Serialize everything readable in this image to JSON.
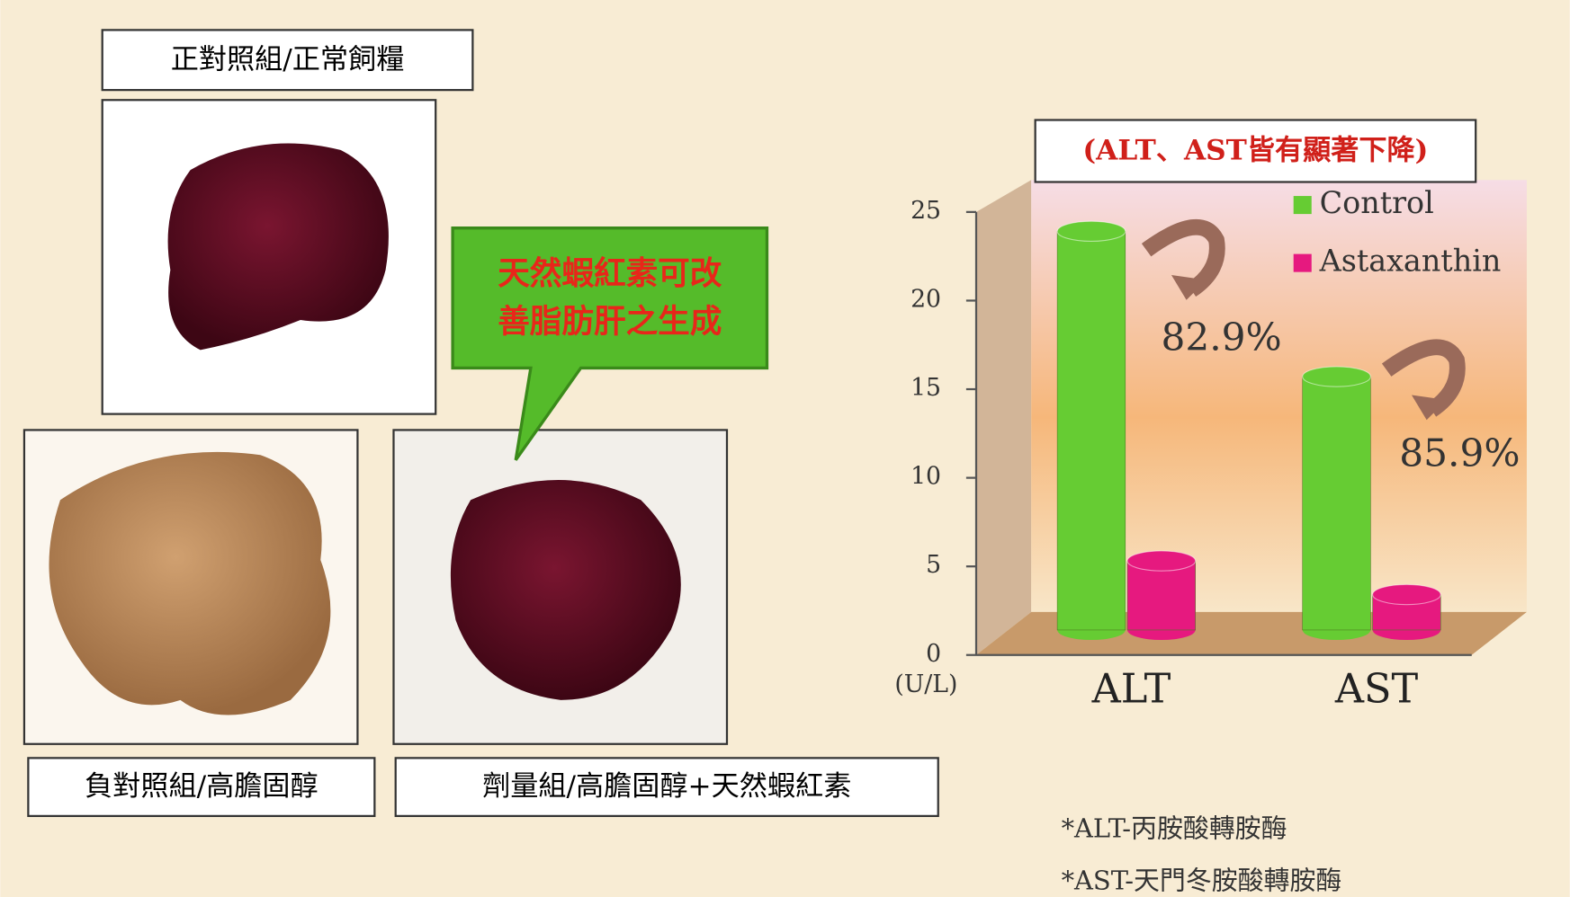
{
  "labels": {
    "positive_control": "正對照組/正常飼糧",
    "negative_control": "負對照組/高膽固醇",
    "dose_group": "劑量組/高膽固醇+天然蝦紅素",
    "callout": [
      "天然蝦紅素可改",
      "善脂肪肝之生成"
    ]
  },
  "chart_data": {
    "type": "bar",
    "title": "(ALT、AST皆有顯著下降)",
    "y_label": "(U/L)",
    "categories": [
      "ALT",
      "AST"
    ],
    "series": [
      {
        "name": "Control",
        "color": "#66cc33",
        "values": [
          22.5,
          14.3
        ]
      },
      {
        "name": "Astaxanthin",
        "color": "#e6197f",
        "values": [
          3.9,
          2.0
        ]
      }
    ],
    "ylim": [
      0,
      25
    ],
    "yticks": [
      0,
      5,
      10,
      15,
      20,
      25
    ],
    "annotations": [
      "82.9%",
      "85.9%"
    ],
    "legend": "upper right"
  },
  "footnotes": [
    "*ALT-丙胺酸轉胺酶",
    "*AST-天門冬胺酸轉胺酶"
  ]
}
